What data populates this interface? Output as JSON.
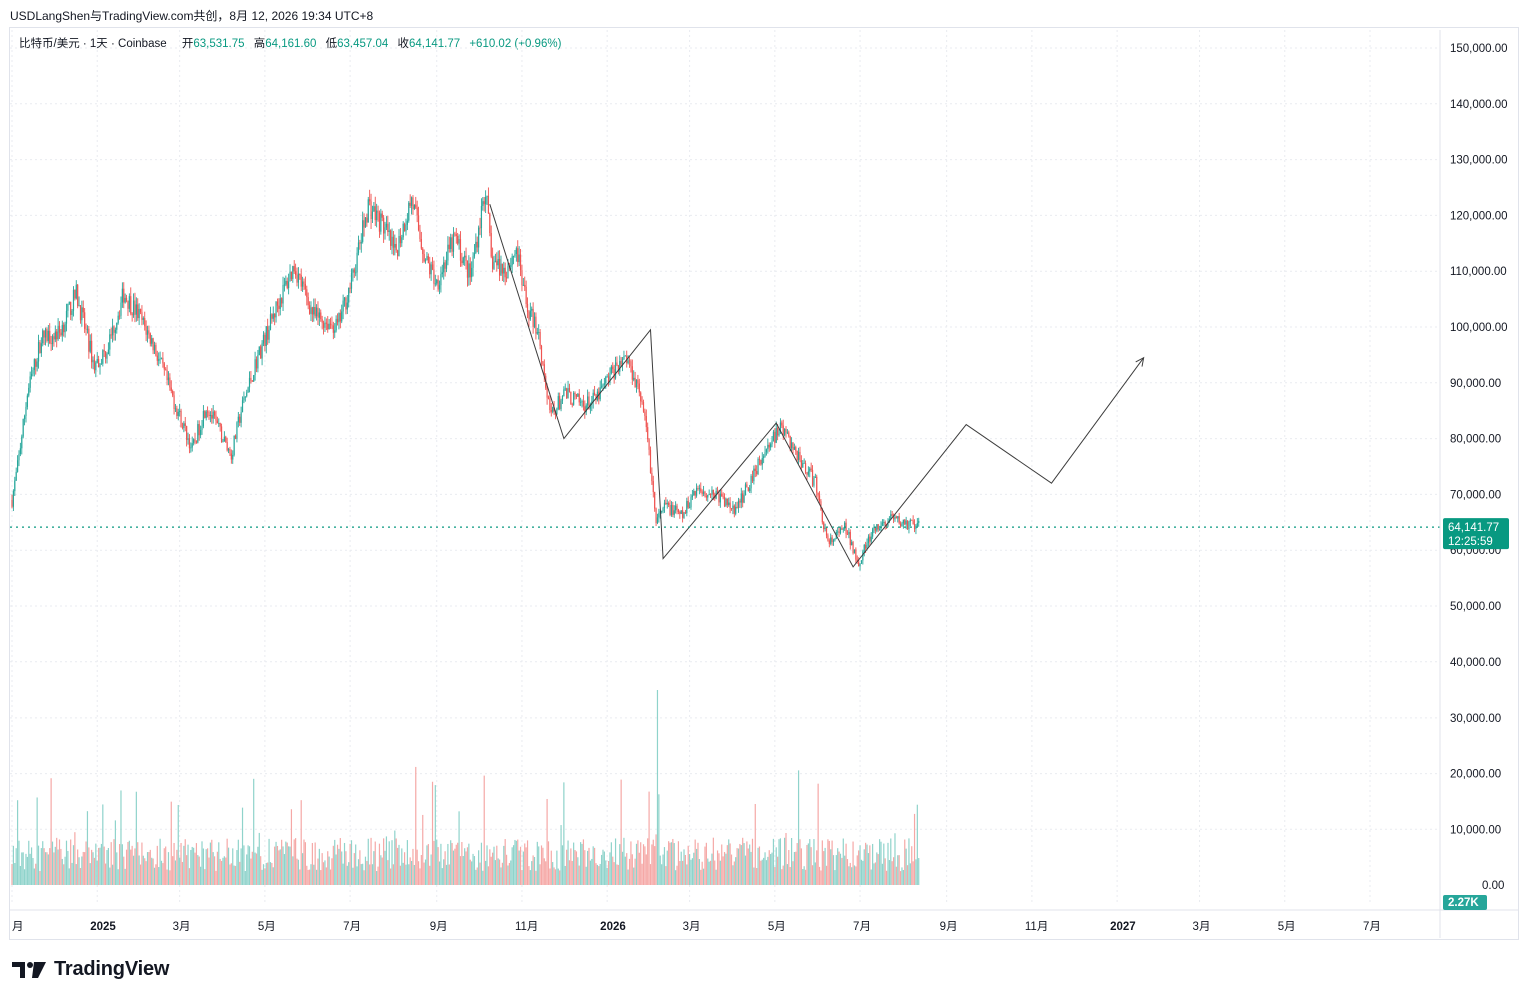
{
  "header": {
    "text": "USDLangShen与TradingView.com共创，8月 12, 2026 19:34 UTC+8"
  },
  "legend": {
    "symbol": "比特币/美元 · 1天 · Coinbase",
    "open_label": "开",
    "open": "63,531.75",
    "high_label": "高",
    "high": "64,161.60",
    "low_label": "低",
    "low": "63,457.04",
    "close_label": "收",
    "close": "64,141.77",
    "change": "+610.02 (+0.96%)"
  },
  "price_badge": {
    "price": "64,141.77",
    "countdown": "12:25:59"
  },
  "volume_badge": {
    "value": "2.27K"
  },
  "branding": {
    "logo_text": "TradingView"
  },
  "colors": {
    "up": "#26a69a",
    "down": "#ef5350",
    "accent": "#089981",
    "grid": "#e9ebf0",
    "text": "#131722"
  },
  "chart_data": {
    "type": "candlestick",
    "title": "比特币/美元 · 1天 · Coinbase",
    "price_axis": {
      "ticks": [
        "150,000.00",
        "140,000.00",
        "130,000.00",
        "120,000.00",
        "110,000.00",
        "100,000.00",
        "90,000.00",
        "80,000.00",
        "70,000.00",
        "60,000.00",
        "50,000.00",
        "40,000.00"
      ],
      "tick_values": [
        150000,
        140000,
        130000,
        120000,
        110000,
        100000,
        90000,
        80000,
        70000,
        60000,
        50000,
        40000
      ],
      "ylim": [
        34000,
        152000
      ]
    },
    "volume_axis": {
      "ticks": [
        "30,000.00",
        "20,000.00",
        "10,000.00",
        "0.00"
      ],
      "tick_values": [
        30000,
        20000,
        10000,
        0
      ]
    },
    "time_axis": {
      "labels": [
        "月",
        "2025",
        "3月",
        "5月",
        "7月",
        "9月",
        "11月",
        "2026",
        "3月",
        "5月",
        "7月",
        "9月",
        "11月",
        "2027",
        "3月",
        "5月",
        "7月"
      ],
      "dates": [
        "2024-11-01",
        "2025-01-01",
        "2025-03-01",
        "2025-05-01",
        "2025-07-01",
        "2025-09-01",
        "2025-11-01",
        "2026-01-01",
        "2026-03-01",
        "2026-05-01",
        "2026-07-01",
        "2026-09-01",
        "2026-11-01",
        "2027-01-01",
        "2027-03-01",
        "2027-05-01",
        "2027-07-01"
      ],
      "bold": [
        "2025",
        "2026",
        "2027"
      ]
    },
    "last_price": 64141.77,
    "series": [
      {
        "kind": "price_path_close",
        "points": [
          [
            "2024-11-01",
            69000
          ],
          [
            "2024-11-05",
            75000
          ],
          [
            "2024-11-12",
            88000
          ],
          [
            "2024-11-22",
            98000
          ],
          [
            "2024-12-05",
            99000
          ],
          [
            "2024-12-17",
            106000
          ],
          [
            "2024-12-30",
            93000
          ],
          [
            "2025-01-08",
            96000
          ],
          [
            "2025-01-20",
            106000
          ],
          [
            "2025-01-31",
            102000
          ],
          [
            "2025-02-10",
            97000
          ],
          [
            "2025-02-26",
            86000
          ],
          [
            "2025-03-10",
            78000
          ],
          [
            "2025-03-20",
            86000
          ],
          [
            "2025-04-07",
            77000
          ],
          [
            "2025-04-14",
            85000
          ],
          [
            "2025-04-25",
            94000
          ],
          [
            "2025-05-10",
            104000
          ],
          [
            "2025-05-22",
            111000
          ],
          [
            "2025-06-05",
            102000
          ],
          [
            "2025-06-22",
            100000
          ],
          [
            "2025-07-03",
            109000
          ],
          [
            "2025-07-14",
            122000
          ],
          [
            "2025-07-25",
            118000
          ],
          [
            "2025-08-02",
            113000
          ],
          [
            "2025-08-14",
            123000
          ],
          [
            "2025-08-24",
            112000
          ],
          [
            "2025-09-01",
            108000
          ],
          [
            "2025-09-14",
            116000
          ],
          [
            "2025-09-25",
            109000
          ],
          [
            "2025-10-06",
            125000
          ],
          [
            "2025-10-10",
            112000
          ],
          [
            "2025-10-20",
            110000
          ],
          [
            "2025-10-28",
            114000
          ],
          [
            "2025-11-04",
            104000
          ],
          [
            "2025-11-13",
            99000
          ],
          [
            "2025-11-21",
            84000
          ],
          [
            "2025-12-02",
            88000
          ],
          [
            "2025-12-15",
            86000
          ],
          [
            "2025-12-24",
            87000
          ],
          [
            "2026-01-05",
            92000
          ],
          [
            "2026-01-14",
            95000
          ],
          [
            "2026-01-24",
            89000
          ],
          [
            "2026-01-30",
            80000
          ],
          [
            "2026-02-05",
            65000
          ],
          [
            "2026-02-12",
            68000
          ],
          [
            "2026-02-24",
            66000
          ],
          [
            "2026-03-05",
            71000
          ],
          [
            "2026-03-20",
            70000
          ],
          [
            "2026-04-03",
            67000
          ],
          [
            "2026-04-20",
            76000
          ],
          [
            "2026-05-05",
            82000
          ],
          [
            "2026-05-15",
            78000
          ],
          [
            "2026-05-30",
            72000
          ],
          [
            "2026-06-08",
            61000
          ],
          [
            "2026-06-20",
            64000
          ],
          [
            "2026-06-30",
            58000
          ],
          [
            "2026-07-10",
            63000
          ],
          [
            "2026-07-22",
            65500
          ],
          [
            "2026-08-12",
            64141.77
          ]
        ]
      },
      {
        "kind": "drawn_projection",
        "points": [
          [
            "2025-10-09",
            122000
          ],
          [
            "2025-12-01",
            80000
          ],
          [
            "2026-02-01",
            99500
          ],
          [
            "2026-02-10",
            58500
          ],
          [
            "2026-05-02",
            82800
          ],
          [
            "2026-06-26",
            57000
          ],
          [
            "2026-09-15",
            82500
          ],
          [
            "2026-11-15",
            72000
          ],
          [
            "2027-01-20",
            94500
          ]
        ]
      }
    ],
    "volume": {
      "max": 35000,
      "spike": [
        "2026-02-06",
        35000
      ]
    },
    "grid": true
  }
}
